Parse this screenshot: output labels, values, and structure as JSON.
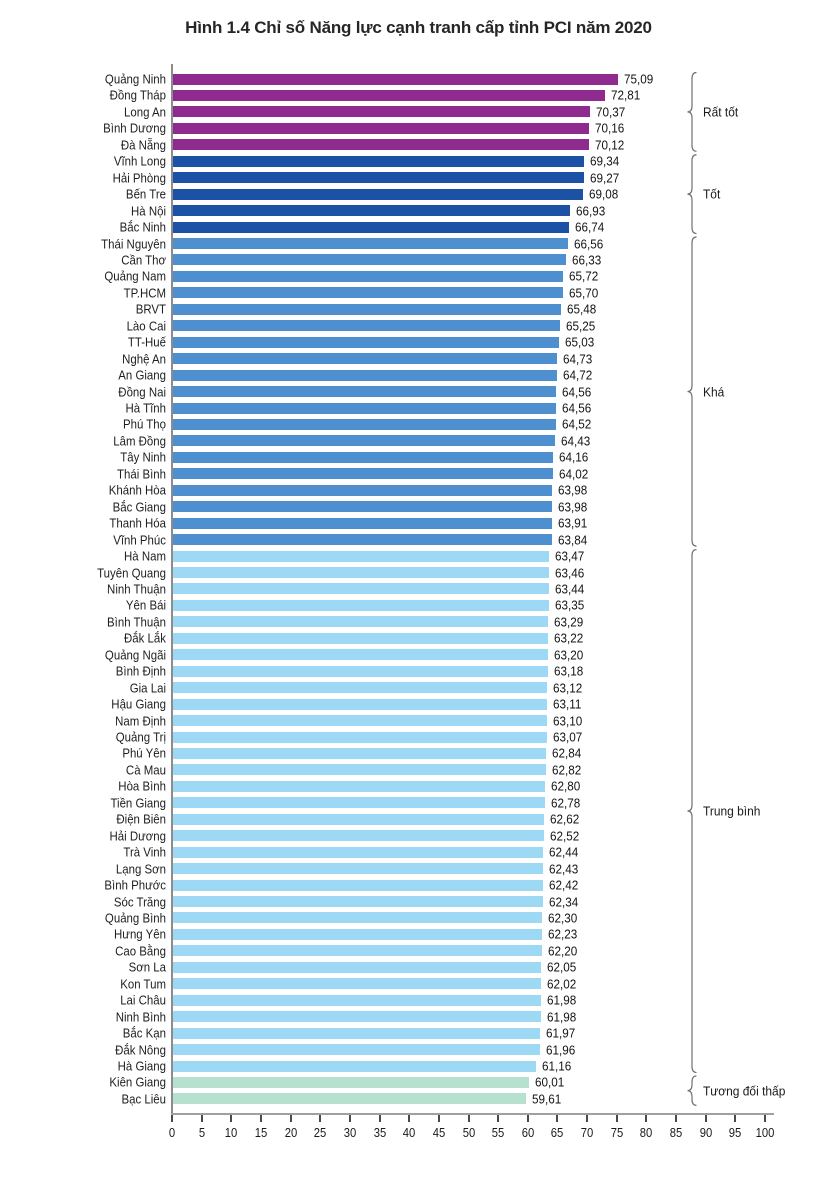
{
  "title": "Hình 1.4 Chỉ số Năng lực cạnh tranh cấp tỉnh PCI năm 2020",
  "chart_data": {
    "type": "bar",
    "orientation": "horizontal",
    "title": "Hình 1.4 Chỉ số Năng lực cạnh tranh cấp tỉnh PCI năm 2020",
    "xlabel": "",
    "ylabel": "",
    "xlim": [
      0,
      100
    ],
    "grid": false,
    "legend_position": "right-brackets",
    "x_ticks": [
      "0",
      "5",
      "10",
      "15",
      "20",
      "25",
      "30",
      "35",
      "40",
      "45",
      "50",
      "55",
      "60",
      "65",
      "70",
      "75",
      "80",
      "85",
      "90",
      "95",
      "100"
    ],
    "groups": [
      {
        "label": "Rất tốt",
        "color": "#8F2B8F",
        "items": [
          {
            "name": "Quảng Ninh",
            "value": 75.09,
            "label": "75,09"
          },
          {
            "name": "Đồng Tháp",
            "value": 72.81,
            "label": "72,81"
          },
          {
            "name": "Long An",
            "value": 70.37,
            "label": "70,37"
          },
          {
            "name": "Bình Dương",
            "value": 70.16,
            "label": "70,16"
          },
          {
            "name": "Đà Nẵng",
            "value": 70.12,
            "label": "70,12"
          }
        ]
      },
      {
        "label": "Tốt",
        "color": "#1B52A5",
        "items": [
          {
            "name": "Vĩnh Long",
            "value": 69.34,
            "label": "69,34"
          },
          {
            "name": "Hải Phòng",
            "value": 69.27,
            "label": "69,27"
          },
          {
            "name": "Bến Tre",
            "value": 69.08,
            "label": "69,08"
          },
          {
            "name": "Hà Nội",
            "value": 66.93,
            "label": "66,93"
          },
          {
            "name": "Bắc Ninh",
            "value": 66.74,
            "label": "66,74"
          }
        ]
      },
      {
        "label": "Khá",
        "color": "#4D8FCF",
        "items": [
          {
            "name": "Thái Nguyên",
            "value": 66.56,
            "label": "66,56"
          },
          {
            "name": "Cần Thơ",
            "value": 66.33,
            "label": "66,33"
          },
          {
            "name": "Quảng Nam",
            "value": 65.72,
            "label": "65,72"
          },
          {
            "name": "TP.HCM",
            "value": 65.7,
            "label": "65,70"
          },
          {
            "name": "BRVT",
            "value": 65.48,
            "label": "65,48"
          },
          {
            "name": "Lào Cai",
            "value": 65.25,
            "label": "65,25"
          },
          {
            "name": "TT-Huế",
            "value": 65.03,
            "label": "65,03"
          },
          {
            "name": "Nghệ An",
            "value": 64.73,
            "label": "64,73"
          },
          {
            "name": "An Giang",
            "value": 64.72,
            "label": "64,72"
          },
          {
            "name": "Đồng Nai",
            "value": 64.56,
            "label": "64,56"
          },
          {
            "name": "Hà Tĩnh",
            "value": 64.56,
            "label": "64,56"
          },
          {
            "name": "Phú Thọ",
            "value": 64.52,
            "label": "64,52"
          },
          {
            "name": "Lâm Đồng",
            "value": 64.43,
            "label": "64,43"
          },
          {
            "name": "Tây Ninh",
            "value": 64.16,
            "label": "64,16"
          },
          {
            "name": "Thái Bình",
            "value": 64.02,
            "label": "64,02"
          },
          {
            "name": "Khánh Hòa",
            "value": 63.98,
            "label": "63,98"
          },
          {
            "name": "Bắc Giang",
            "value": 63.98,
            "label": "63,98"
          },
          {
            "name": "Thanh Hóa",
            "value": 63.91,
            "label": "63,91"
          },
          {
            "name": "Vĩnh Phúc",
            "value": 63.84,
            "label": "63,84"
          }
        ]
      },
      {
        "label": "Trung bình",
        "color": "#9DD8F5",
        "items": [
          {
            "name": "Hà Nam",
            "value": 63.47,
            "label": "63,47"
          },
          {
            "name": "Tuyên Quang",
            "value": 63.46,
            "label": "63,46"
          },
          {
            "name": "Ninh Thuận",
            "value": 63.44,
            "label": "63,44"
          },
          {
            "name": "Yên Bái",
            "value": 63.35,
            "label": "63,35"
          },
          {
            "name": "Bình Thuận",
            "value": 63.29,
            "label": "63,29"
          },
          {
            "name": "Đắk Lắk",
            "value": 63.22,
            "label": "63,22"
          },
          {
            "name": "Quảng Ngãi",
            "value": 63.2,
            "label": "63,20"
          },
          {
            "name": "Bình Định",
            "value": 63.18,
            "label": "63,18"
          },
          {
            "name": "Gia Lai",
            "value": 63.12,
            "label": "63,12"
          },
          {
            "name": "Hậu Giang",
            "value": 63.11,
            "label": "63,11"
          },
          {
            "name": "Nam Định",
            "value": 63.1,
            "label": "63,10"
          },
          {
            "name": "Quảng Trị",
            "value": 63.07,
            "label": "63,07"
          },
          {
            "name": "Phú Yên",
            "value": 62.84,
            "label": "62,84"
          },
          {
            "name": "Cà Mau",
            "value": 62.82,
            "label": "62,82"
          },
          {
            "name": "Hòa Bình",
            "value": 62.8,
            "label": "62,80"
          },
          {
            "name": "Tiền Giang",
            "value": 62.78,
            "label": "62,78"
          },
          {
            "name": "Điện Biên",
            "value": 62.62,
            "label": "62,62"
          },
          {
            "name": "Hải Dương",
            "value": 62.52,
            "label": "62,52"
          },
          {
            "name": "Trà Vinh",
            "value": 62.44,
            "label": "62,44"
          },
          {
            "name": "Lạng Sơn",
            "value": 62.43,
            "label": "62,43"
          },
          {
            "name": "Bình Phước",
            "value": 62.42,
            "label": "62,42"
          },
          {
            "name": "Sóc Trăng",
            "value": 62.34,
            "label": "62,34"
          },
          {
            "name": "Quảng Bình",
            "value": 62.3,
            "label": "62,30"
          },
          {
            "name": "Hưng Yên",
            "value": 62.23,
            "label": "62,23"
          },
          {
            "name": "Cao Bằng",
            "value": 62.2,
            "label": "62,20"
          },
          {
            "name": "Sơn La",
            "value": 62.05,
            "label": "62,05"
          },
          {
            "name": "Kon Tum",
            "value": 62.02,
            "label": "62,02"
          },
          {
            "name": "Lai Châu",
            "value": 61.98,
            "label": "61,98"
          },
          {
            "name": "Ninh Bình",
            "value": 61.98,
            "label": "61,98"
          },
          {
            "name": "Bắc Kạn",
            "value": 61.97,
            "label": "61,97"
          },
          {
            "name": "Đắk Nông",
            "value": 61.96,
            "label": "61,96"
          },
          {
            "name": "Hà Giang",
            "value": 61.16,
            "label": "61,16"
          }
        ]
      },
      {
        "label": "Tương đối thấp",
        "color": "#B7E1CF",
        "items": [
          {
            "name": "Kiên Giang",
            "value": 60.01,
            "label": "60,01"
          },
          {
            "name": "Bạc Liêu",
            "value": 59.61,
            "label": "59,61"
          }
        ]
      }
    ]
  }
}
